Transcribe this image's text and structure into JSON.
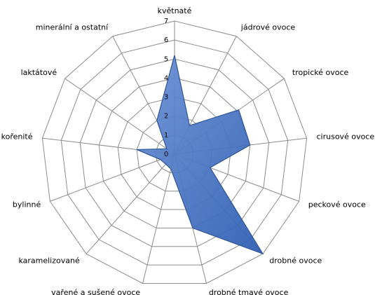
{
  "chart_data": {
    "type": "radar",
    "categories": [
      "květnaté",
      "jádrové ovoce",
      "tropické ovoce",
      "cirusové ovoce",
      "peckové ovoce",
      "drobné ovoce",
      "drobné tmavé ovoce",
      "vařené a sušené ovoce",
      "karamelizované",
      "bylinné",
      "kořenité",
      "laktátové",
      "minerální a ostatní"
    ],
    "values": [
      5.2,
      1.7,
      4.1,
      4.0,
      2.0,
      7.0,
      4.0,
      0.8,
      0.7,
      0.8,
      2.0,
      0.5,
      2.0
    ],
    "color": "#4472c4",
    "ylim": [
      0,
      7
    ],
    "yticks": [
      0,
      1,
      2,
      3,
      4,
      5,
      6,
      7
    ],
    "grid": true
  }
}
